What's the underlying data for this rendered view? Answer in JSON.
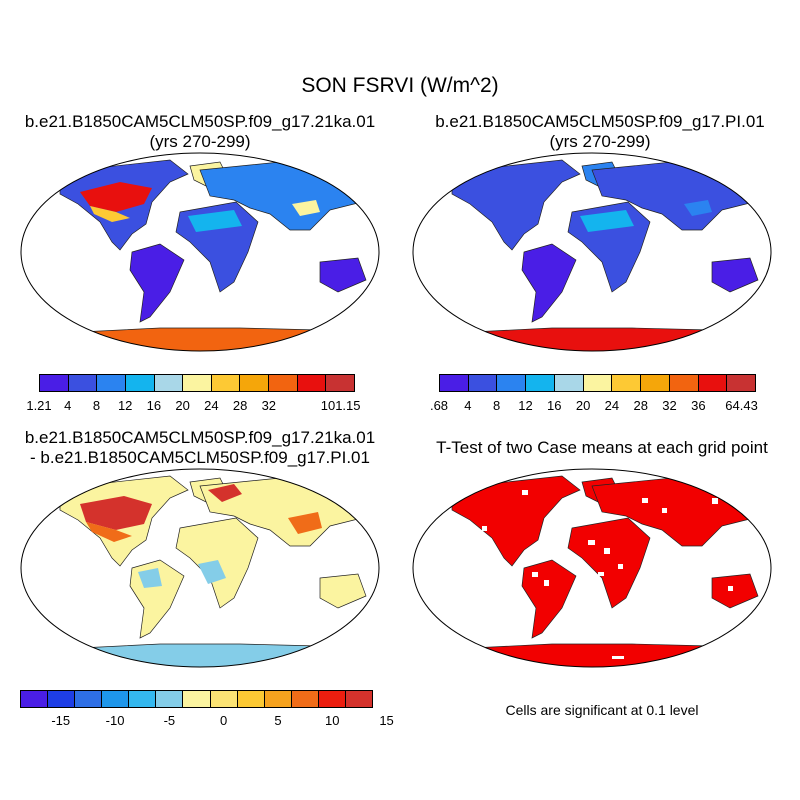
{
  "title": "SON FSRVI (W/m^2)",
  "panels": [
    {
      "title_line1": "b.e21.B1850CAM5CLM50SP.f09_g17.21ka.01",
      "title_line2": "(yrs 270-299)",
      "colorbar": {
        "colors": [
          "#4a1ee6",
          "#3b50e0",
          "#2b83f0",
          "#14b4ee",
          "#a9d7e8",
          "#fbf4a0",
          "#fdc934",
          "#f5a60a",
          "#f26410",
          "#e8100e",
          "#c83232"
        ],
        "labels": [
          "1.21",
          "4",
          "8",
          "12",
          "16",
          "20",
          "24",
          "28",
          "32",
          "",
          "101.15"
        ]
      }
    },
    {
      "title_line1": "b.e21.B1850CAM5CLM50SP.f09_g17.PI.01",
      "title_line2": "(yrs 270-299)",
      "colorbar": {
        "colors": [
          "#4a1ee6",
          "#3b50e0",
          "#2b83f0",
          "#14b4ee",
          "#a9d7e8",
          "#fbf4a0",
          "#fdc934",
          "#f5a60a",
          "#f26410",
          "#e8100e",
          "#c83232"
        ],
        "labels": [
          ".68",
          "4",
          "8",
          "12",
          "16",
          "20",
          "24",
          "28",
          "32",
          "36",
          "64.43"
        ]
      }
    },
    {
      "title_line1": "b.e21.B1850CAM5CLM50SP.f09_g17.21ka.01",
      "title_line2": "- b.e21.B1850CAM5CLM50SP.f09_g17.PI.01",
      "colorbar": {
        "colors": [
          "#4a1ee6",
          "#1e3ee6",
          "#2e6fe6",
          "#1e96ea",
          "#34b8ef",
          "#84cde8",
          "#fbf4a0",
          "#fbe374",
          "#fcc934",
          "#f6a21e",
          "#f06c18",
          "#ec1e0f",
          "#d4322c"
        ],
        "labels": [
          "",
          "-15",
          "",
          "-10",
          "",
          "-5",
          "",
          "0",
          "",
          "5",
          "",
          "10",
          "",
          "15"
        ]
      }
    },
    {
      "title_line1": "T-Test of two Case means at each grid point",
      "note": "Cells are significant at 0.1 level"
    }
  ]
}
